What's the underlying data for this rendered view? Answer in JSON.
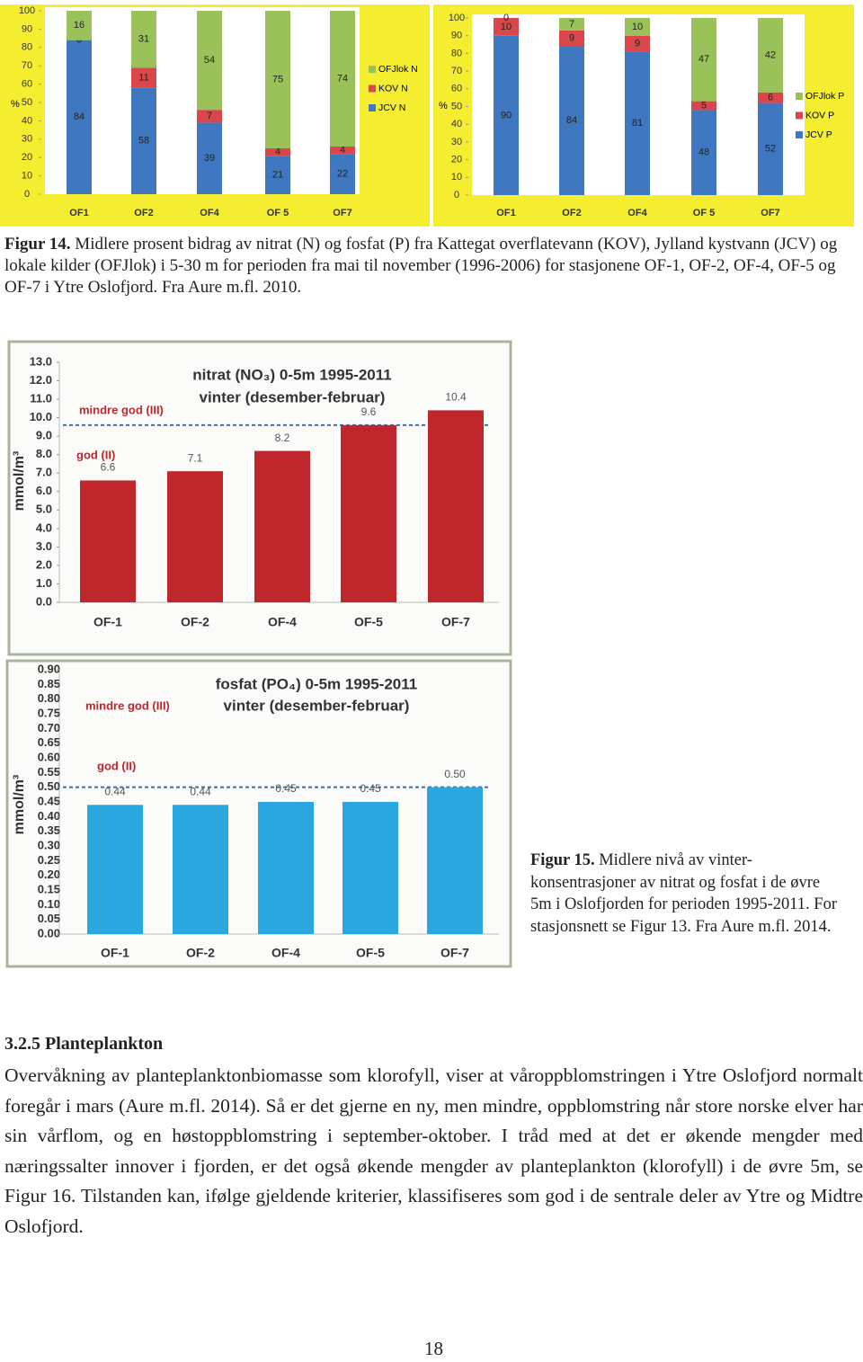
{
  "chart_data": [
    {
      "type": "stacked_bar",
      "ylabel": "%",
      "categories": [
        "OF1",
        "OF2",
        "OF4",
        "OF 5",
        "OF7"
      ],
      "series": [
        {
          "name": "JCV N",
          "color": "#3f78c1",
          "values": [
            84,
            58,
            39,
            21,
            22
          ]
        },
        {
          "name": "KOV N",
          "color": "#d9474b",
          "values": [
            0,
            11,
            7,
            4,
            4
          ]
        },
        {
          "name": "OFJlok N",
          "color": "#9bc25a",
          "values": [
            16,
            31,
            54,
            75,
            74
          ]
        }
      ],
      "ylim": [
        0,
        100
      ],
      "yticks": [
        0,
        10,
        20,
        30,
        40,
        50,
        60,
        70,
        80,
        90,
        100
      ],
      "background": "#f5ee30"
    },
    {
      "type": "stacked_bar",
      "ylabel": "%",
      "categories": [
        "OF1",
        "OF2",
        "OF4",
        "OF 5",
        "OF7"
      ],
      "series": [
        {
          "name": "JCV P",
          "color": "#3f78c1",
          "values": [
            90,
            84,
            81,
            48,
            52
          ]
        },
        {
          "name": "KOV P",
          "color": "#d9474b",
          "values": [
            10,
            9,
            9,
            5,
            6
          ]
        },
        {
          "name": "OFJlok P",
          "color": "#9bc25a",
          "values": [
            0,
            7,
            10,
            47,
            42
          ]
        }
      ],
      "ylim": [
        0,
        100
      ],
      "yticks": [
        0,
        10,
        20,
        30,
        40,
        50,
        60,
        70,
        80,
        90,
        100
      ],
      "background": "#f5ee30"
    },
    {
      "type": "bar",
      "title": [
        "nitrat (NO₃) 0-5m 1995-2011",
        "vinter (desember-februar)"
      ],
      "ylabel": "mmol/m³",
      "categories": [
        "OF-1",
        "OF-2",
        "OF-4",
        "OF-5",
        "OF-7"
      ],
      "values": [
        6.6,
        7.1,
        8.2,
        9.6,
        10.4
      ],
      "color": "#c0272d",
      "ylim": [
        0,
        13
      ],
      "yticks": [
        {
          "value": 0,
          "label": "0.0"
        },
        {
          "value": 1,
          "label": "1.0"
        },
        {
          "value": 2,
          "label": "2.0"
        },
        {
          "value": 3,
          "label": "3.0"
        },
        {
          "value": 4,
          "label": "4.0"
        },
        {
          "value": 5,
          "label": "5.0"
        },
        {
          "value": 6,
          "label": "6.0"
        },
        {
          "value": 7,
          "label": "7.0"
        },
        {
          "value": 8,
          "label": "8.0"
        },
        {
          "value": 9,
          "label": "9.0"
        },
        {
          "value": 10,
          "label": "10.0"
        },
        {
          "value": 11,
          "label": "11.0"
        },
        {
          "value": 12,
          "label": "12.0"
        },
        {
          "value": 13,
          "label": "13.0"
        }
      ],
      "annotations": [
        "mindre god (III)",
        "god (II)"
      ],
      "reference_line": 9.6
    },
    {
      "type": "bar",
      "title": [
        "fosfat (PO₄) 0-5m 1995-2011",
        "vinter (desember-februar)"
      ],
      "ylabel": "mmol/m³",
      "categories": [
        "OF-1",
        "OF-2",
        "OF-4",
        "OF-5",
        "OF-7"
      ],
      "values": [
        0.44,
        0.44,
        0.45,
        0.45,
        0.5
      ],
      "value_labels": [
        "0.44",
        "0.44",
        "0.45",
        "0.45",
        "0.50"
      ],
      "color": "#2aa7df",
      "ylim": [
        0,
        0.9
      ],
      "yticks": [
        {
          "value": 0,
          "label": "0.00"
        },
        0.05,
        {
          "value": 0.1,
          "label": "0.10"
        },
        0.15,
        {
          "value": 0.2,
          "label": "0.20"
        },
        0.25,
        {
          "value": 0.3,
          "label": "0.30"
        },
        0.35,
        {
          "value": 0.4,
          "label": "0.40"
        },
        0.45,
        {
          "value": 0.5,
          "label": "0.50"
        },
        0.55,
        {
          "value": 0.6,
          "label": "0.60"
        },
        0.65,
        {
          "value": 0.7,
          "label": "0.70"
        },
        0.75,
        {
          "value": 0.8,
          "label": "0.80"
        },
        0.85,
        {
          "value": 0.9,
          "label": "0.90"
        }
      ],
      "annotations": [
        "mindre god (III)",
        "god (II)"
      ],
      "reference_line": 0.5
    }
  ],
  "figure14_caption": {
    "label": "Figur 14.",
    "text": "Midlere prosent bidrag av nitrat (N) og fosfat (P) fra Kattegat overflatevann (KOV), Jylland kystvann (JCV) og lokale kilder (OFJlok) i 5-30 m for perioden fra mai til november (1996-2006) for stasjonene OF-1, OF-2, OF-4, OF-5 og OF-7 i Ytre Oslofjord. Fra Aure m.fl. 2010."
  },
  "figure15_caption": {
    "label": "Figur 15.",
    "text": "Midlere nivå av vinter-konsentrasjoner av nitrat og fosfat i de øvre 5m i Oslofjorden for perioden 1995-2011. For stasjonsnett se Figur 13. Fra Aure m.fl. 2014."
  },
  "section": {
    "heading": "3.2.5 Planteplankton",
    "paragraph": "Overvåkning av planteplanktonbiomasse som klorofyll, viser at våroppblomstringen i Ytre Oslofjord normalt foregår i mars (Aure m.fl. 2014). Så er det gjerne en ny, men mindre, oppblomstring når store norske elver har sin vårflom, og en høstoppblomstring i september-oktober. I tråd med at det er økende mengder med næringssalter innover i fjorden, er det også økende mengder av planteplankton (klorofyll) i de øvre 5m, se Figur 16. Tilstanden kan, ifølge gjeldende kriterier, klassifiseres som god i de sentrale deler av Ytre og Midtre Oslofjord."
  },
  "page_number": "18"
}
